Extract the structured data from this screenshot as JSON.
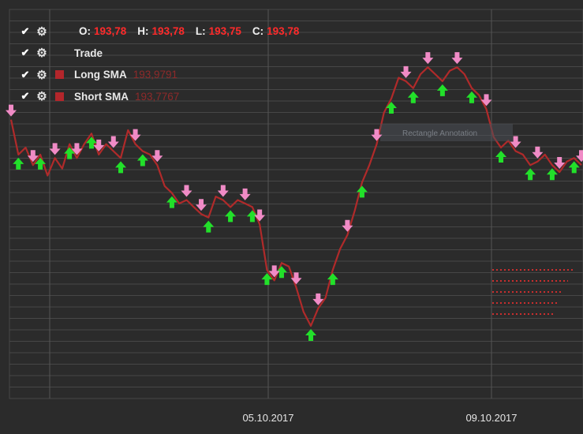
{
  "legend": {
    "ohlc": {
      "o_label": "O:",
      "o_value": "193,78",
      "h_label": "H:",
      "h_value": "193,78",
      "l_label": "L:",
      "l_value": "193,75",
      "c_label": "C:",
      "c_value": "193,78"
    },
    "trade_label": "Trade",
    "long_sma_label": "Long SMA",
    "long_sma_value": "193,9791",
    "short_sma_label": "Short SMA",
    "short_sma_value": "193,7767",
    "check_icon": "check-icon",
    "gear_icon": "gear-icon"
  },
  "colors": {
    "background": "#2b2b2b",
    "grid": "#474747",
    "line": "#b02a2a",
    "buy_arrow": "#22e02a",
    "sell_arrow": "#f08bc6",
    "value_text": "#ff2a2a"
  },
  "chart_data": {
    "type": "line",
    "x_tick_labels": [
      "05.10.2017",
      "09.10.2017"
    ],
    "grid": true,
    "y_min_rel": 0,
    "y_max_rel": 1,
    "price_path": [
      0.73,
      0.63,
      0.65,
      0.6,
      0.63,
      0.57,
      0.62,
      0.59,
      0.66,
      0.62,
      0.66,
      0.69,
      0.63,
      0.66,
      0.64,
      0.62,
      0.7,
      0.66,
      0.64,
      0.63,
      0.6,
      0.54,
      0.52,
      0.49,
      0.5,
      0.48,
      0.46,
      0.45,
      0.51,
      0.5,
      0.48,
      0.5,
      0.49,
      0.48,
      0.43,
      0.3,
      0.27,
      0.32,
      0.31,
      0.25,
      0.18,
      0.14,
      0.19,
      0.22,
      0.3,
      0.36,
      0.4,
      0.47,
      0.55,
      0.6,
      0.66,
      0.75,
      0.79,
      0.85,
      0.84,
      0.82,
      0.86,
      0.88,
      0.86,
      0.84,
      0.87,
      0.88,
      0.86,
      0.82,
      0.8,
      0.76,
      0.68,
      0.65,
      0.67,
      0.64,
      0.63,
      0.6,
      0.61,
      0.63,
      0.6,
      0.58,
      0.61,
      0.62,
      0.6
    ],
    "buy_signals": [
      1,
      4,
      8,
      11,
      15,
      18,
      22,
      27,
      30,
      33,
      35,
      37,
      41,
      44,
      48,
      52,
      55,
      59,
      63,
      67,
      71,
      74,
      77
    ],
    "sell_signals": [
      0,
      3,
      6,
      9,
      12,
      14,
      17,
      20,
      24,
      26,
      29,
      32,
      34,
      36,
      39,
      42,
      46,
      50,
      54,
      57,
      61,
      65,
      69,
      72,
      75,
      78
    ],
    "annotation_label": "Rectangle Annotation"
  }
}
